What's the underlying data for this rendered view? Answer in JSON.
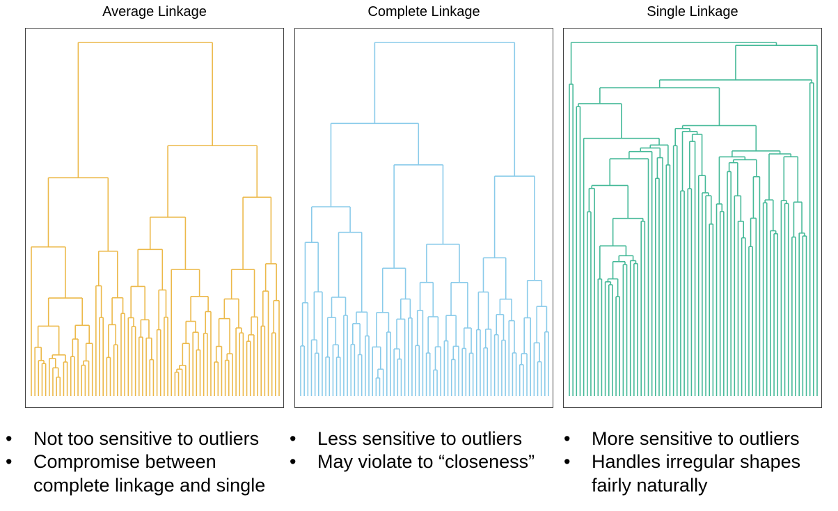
{
  "panels": [
    {
      "id": "average",
      "title": "Average Linkage",
      "color": "#ECB94A",
      "notes": [
        "Not too sensitive to outliers",
        "Compromise between complete linkage and single"
      ]
    },
    {
      "id": "complete",
      "title": "Complete Linkage",
      "color": "#8ACBEA",
      "notes": [
        "Less sensitive to outliers",
        "May violate to “closeness”"
      ]
    },
    {
      "id": "single",
      "title": "Single Linkage",
      "color": "#45B998",
      "notes": [
        "More sensitive to outliers",
        "Handles irregular shapes fairly naturally"
      ]
    }
  ]
}
